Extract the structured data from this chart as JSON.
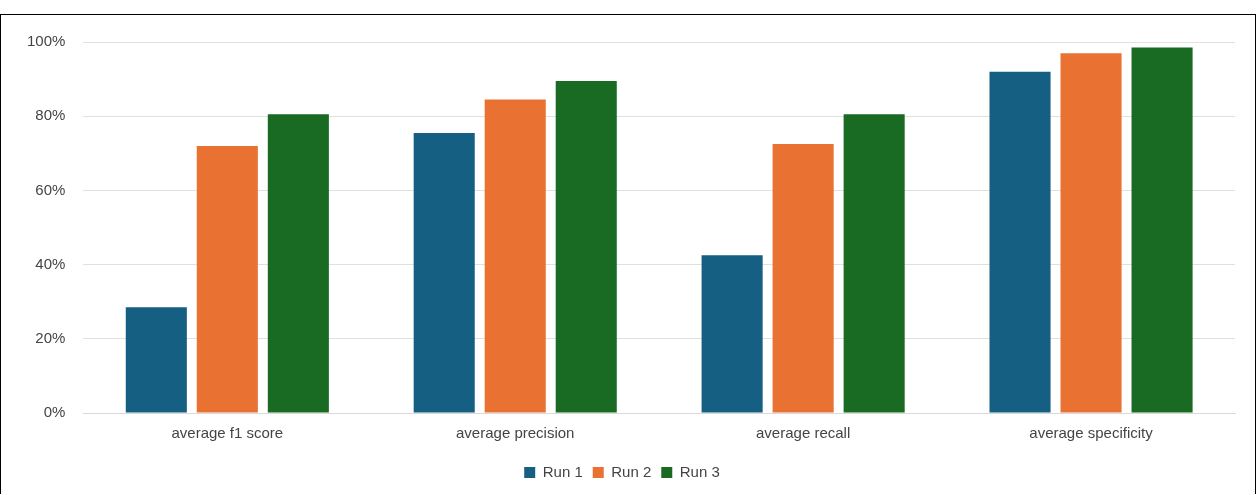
{
  "chart_data": {
    "type": "bar",
    "categories": [
      "average f1 score",
      "average precision",
      "average recall",
      "average specificity"
    ],
    "series": [
      {
        "name": "Run 1",
        "color": "#155f82",
        "values": [
          28.5,
          75.5,
          42.5,
          92
        ]
      },
      {
        "name": "Run 2",
        "color": "#e97132",
        "values": [
          72,
          84.5,
          72.5,
          97
        ]
      },
      {
        "name": "Run 3",
        "color": "#196b24",
        "values": [
          80.5,
          89.5,
          80.5,
          98.5
        ]
      }
    ],
    "ylim": [
      0,
      100
    ],
    "yticks": [
      {
        "value": 0,
        "label": "0%"
      },
      {
        "value": 20,
        "label": "20%"
      },
      {
        "value": 40,
        "label": "40%"
      },
      {
        "value": 60,
        "label": "60%"
      },
      {
        "value": 80,
        "label": "80%"
      },
      {
        "value": 100,
        "label": "100%"
      }
    ],
    "grid": "y",
    "legend": "bottom"
  }
}
